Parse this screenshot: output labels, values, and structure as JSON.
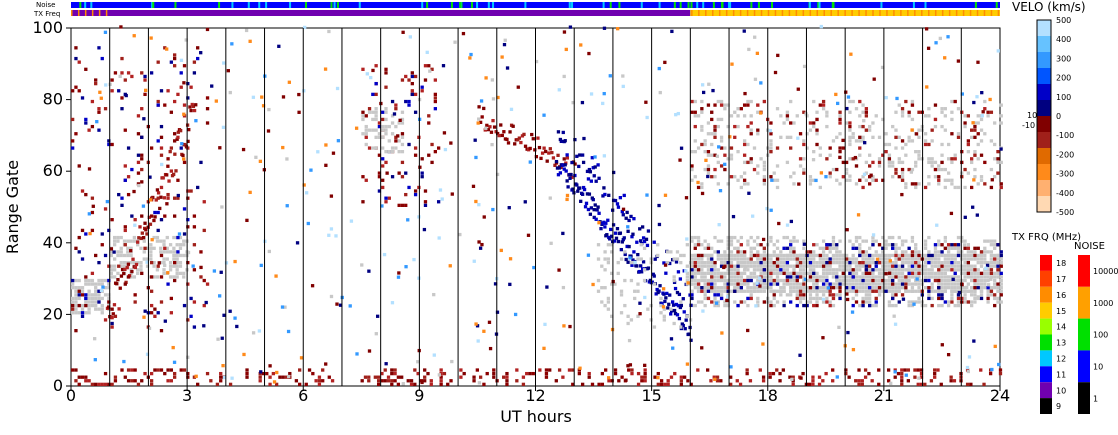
{
  "chart_data": {
    "type": "heatmap",
    "xlabel": "UT hours",
    "ylabel": "Range Gate",
    "xlim": [
      0,
      24
    ],
    "ylim": [
      0,
      100
    ],
    "xticks": [
      "0",
      "3",
      "6",
      "9",
      "12",
      "15",
      "18",
      "21",
      "24"
    ],
    "yticks": [
      "0",
      "20",
      "40",
      "60",
      "80",
      "100"
    ],
    "top_strips": {
      "noise_label": "Noise",
      "txfrq_label": "TX Freq",
      "txfrq_change_hour": 16
    },
    "velocity_scale": {
      "title": "VELO (km/s)",
      "ticks": [
        "500",
        "400",
        "300",
        "200",
        "100",
        "0",
        "-100",
        "-200",
        "-300",
        "-400",
        "-500"
      ],
      "ground_low": "-10",
      "ground_high": "10",
      "colors": [
        "#ffd9b3",
        "#ffb070",
        "#ff8a1a",
        "#e06a00",
        "#a0201a",
        "#800000",
        "#000080",
        "#0000c8",
        "#0055ff",
        "#3399ff",
        "#66c2ff",
        "#b3e0ff"
      ]
    },
    "txfrq_scale": {
      "title": "TX FRQ (MHz)",
      "ticks": [
        "18",
        "17",
        "16",
        "15",
        "14",
        "13",
        "12",
        "11",
        "10",
        "9"
      ],
      "colors": [
        "#ff0000",
        "#ff4000",
        "#ff8c00",
        "#ffcc00",
        "#99ff00",
        "#00e000",
        "#00c8ff",
        "#0000ff",
        "#7000b0",
        "#000000"
      ]
    },
    "noise_scale": {
      "title": "NOISE",
      "ticks": [
        "10000",
        "1000",
        "100",
        "10",
        "1"
      ],
      "colors": [
        "#ff0000",
        "#ffa000",
        "#00e000",
        "#0000ff",
        "#000000"
      ]
    },
    "features": [
      {
        "name": "ground-scatter band",
        "x": [
          16,
          24
        ],
        "y": [
          20,
          40
        ]
      },
      {
        "name": "near-range ground scatter",
        "x": [
          0,
          3
        ],
        "y": [
          20,
          30
        ]
      },
      {
        "name": "blue descending arc",
        "x": [
          12.5,
          16
        ],
        "y": [
          15,
          62
        ]
      },
      {
        "name": "red diagonal",
        "x": [
          10.5,
          13
        ],
        "y": [
          55,
          75
        ]
      },
      {
        "name": "early scatter",
        "x": [
          0,
          3.5
        ],
        "y": [
          15,
          95
        ]
      },
      {
        "name": "mid-morning scatter",
        "x": [
          7.5,
          9.5
        ],
        "y": [
          50,
          90
        ]
      },
      {
        "name": "late-day echoes",
        "x": [
          16,
          24
        ],
        "y": [
          55,
          80
        ]
      },
      {
        "name": "near ground row",
        "x": [
          0,
          24
        ],
        "y": [
          0,
          5
        ]
      }
    ]
  }
}
